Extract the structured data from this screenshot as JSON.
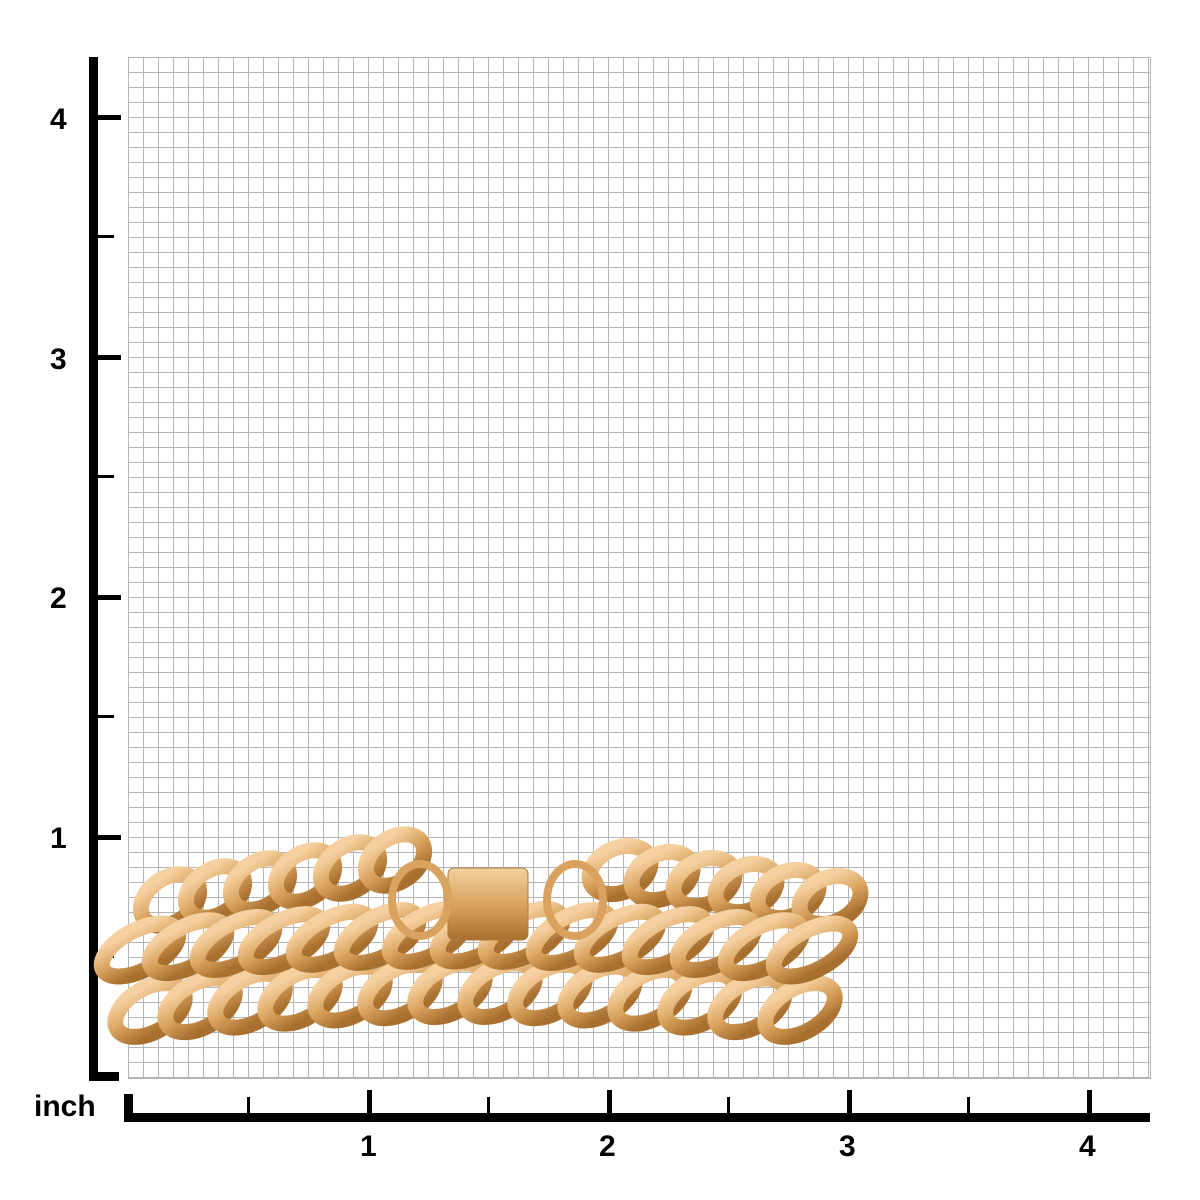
{
  "ruler": {
    "unit_label": "inch",
    "x_ticks": [
      "1",
      "2",
      "3",
      "4"
    ],
    "y_ticks": [
      "4",
      "3",
      "2",
      "1"
    ]
  },
  "product": {
    "type": "gold curb chain bracelet",
    "color": "#d9a35f"
  }
}
